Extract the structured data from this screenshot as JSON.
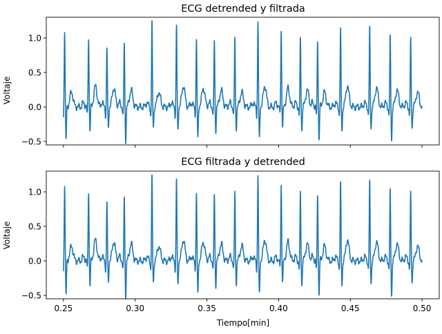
{
  "figure": {
    "x_axis_label": "Tiempo[min]",
    "x_tick_labels": [
      "0.25",
      "0.30",
      "0.35",
      "0.40",
      "0.45",
      "0.50"
    ],
    "y_tick_labels": [
      "−0.5",
      "0.0",
      "0.5",
      "1.0"
    ]
  },
  "chart_data": [
    {
      "type": "line",
      "title": "ECG detrended y filtrada",
      "xlabel": "",
      "ylabel": "Voltaje",
      "xlim": [
        0.238,
        0.512
      ],
      "ylim": [
        -0.55,
        1.3
      ],
      "xticks": [
        0.25,
        0.3,
        0.35,
        0.4,
        0.45,
        0.5
      ],
      "yticks": [
        -0.5,
        0.0,
        0.5,
        1.0
      ],
      "grid": false,
      "series": [
        {
          "color": "#1f77b4",
          "beats": [
            {
              "t": 0.2508,
              "peak": 1.14
            },
            {
              "t": 0.2675,
              "peak": 1.02
            },
            {
              "t": 0.2803,
              "peak": 0.85
            },
            {
              "t": 0.2924,
              "peak": 0.92
            },
            {
              "t": 0.3117,
              "peak": 1.22
            },
            {
              "t": 0.3288,
              "peak": 1.18
            },
            {
              "t": 0.3427,
              "peak": 0.97
            },
            {
              "t": 0.3552,
              "peak": 0.96
            },
            {
              "t": 0.3695,
              "peak": 1.0
            },
            {
              "t": 0.3856,
              "peak": 1.23
            },
            {
              "t": 0.4018,
              "peak": 1.12
            },
            {
              "t": 0.4152,
              "peak": 0.98
            },
            {
              "t": 0.4272,
              "peak": 0.97
            },
            {
              "t": 0.4432,
              "peak": 1.12
            },
            {
              "t": 0.4635,
              "peak": 1.12
            },
            {
              "t": 0.4778,
              "peak": 1.0
            },
            {
              "t": 0.4921,
              "peak": 0.96
            }
          ],
          "x_range": [
            0.25,
            0.5
          ],
          "baseline": 0.0,
          "s_wave_min": -0.48,
          "t_wave_max": 0.3
        }
      ]
    },
    {
      "type": "line",
      "title": "ECG filtrada y detrended",
      "xlabel": "Tiempo[min]",
      "ylabel": "Voltaje",
      "xlim": [
        0.238,
        0.512
      ],
      "ylim": [
        -0.55,
        1.3
      ],
      "xticks": [
        0.25,
        0.3,
        0.35,
        0.4,
        0.45,
        0.5
      ],
      "yticks": [
        -0.5,
        0.0,
        0.5,
        1.0
      ],
      "grid": false,
      "series": [
        {
          "color": "#1f77b4",
          "beats": [
            {
              "t": 0.2508,
              "peak": 1.14
            },
            {
              "t": 0.2675,
              "peak": 1.02
            },
            {
              "t": 0.2803,
              "peak": 0.85
            },
            {
              "t": 0.2924,
              "peak": 0.92
            },
            {
              "t": 0.3117,
              "peak": 1.22
            },
            {
              "t": 0.3288,
              "peak": 1.18
            },
            {
              "t": 0.3427,
              "peak": 0.97
            },
            {
              "t": 0.3552,
              "peak": 0.96
            },
            {
              "t": 0.3695,
              "peak": 1.0
            },
            {
              "t": 0.3856,
              "peak": 1.23
            },
            {
              "t": 0.4018,
              "peak": 1.12
            },
            {
              "t": 0.4152,
              "peak": 0.98
            },
            {
              "t": 0.4272,
              "peak": 0.97
            },
            {
              "t": 0.4432,
              "peak": 1.12
            },
            {
              "t": 0.4635,
              "peak": 1.12
            },
            {
              "t": 0.4778,
              "peak": 1.0
            },
            {
              "t": 0.4921,
              "peak": 0.96
            }
          ],
          "x_range": [
            0.25,
            0.5
          ],
          "baseline": 0.0,
          "s_wave_min": -0.5,
          "t_wave_max": 0.3
        }
      ]
    }
  ]
}
